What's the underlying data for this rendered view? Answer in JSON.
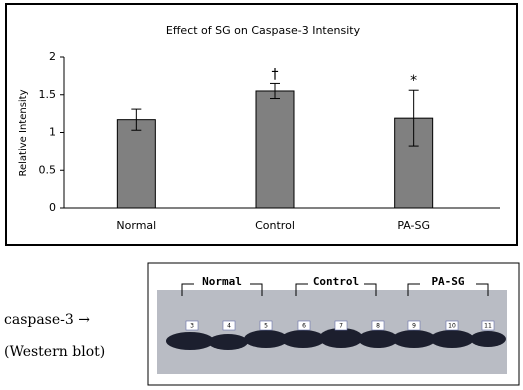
{
  "chart_data": {
    "type": "bar",
    "title": "Effect of SG on Caspase-3 Intensity",
    "y_label": "Relative Intensity",
    "categories": [
      "Normal",
      "Control",
      "PA-SG"
    ],
    "values": [
      1.17,
      1.55,
      1.19
    ],
    "errors": [
      0.14,
      0.1,
      0.37
    ],
    "annotations": [
      null,
      "†",
      "*"
    ],
    "color": "#808080",
    "ylim": [
      0,
      2
    ],
    "yticks": [
      0,
      0.5,
      1,
      1.5,
      2
    ],
    "grid": false
  },
  "blot": {
    "label": "caspase-3 →",
    "sublabel": "(Western blot)",
    "groups": [
      "Normal",
      "Control",
      "PA-SG"
    ],
    "lanes": [
      "3",
      "4",
      "5",
      "6",
      "7",
      "8",
      "9",
      "10",
      "11"
    ]
  }
}
